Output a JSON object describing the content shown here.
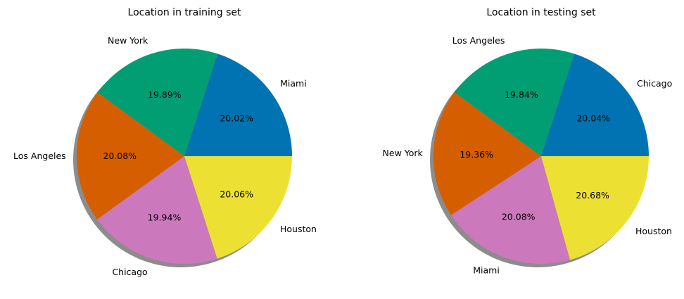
{
  "chart_data": [
    {
      "type": "pie",
      "title": "Location in training set",
      "slices": [
        {
          "label": "Miami",
          "value": 20.02,
          "pct_text": "20.02%",
          "color": "#0173b2"
        },
        {
          "label": "New York",
          "value": 19.89,
          "pct_text": "19.89%",
          "color": "#029e73"
        },
        {
          "label": "Los Angeles",
          "value": 20.08,
          "pct_text": "20.08%",
          "color": "#d55e00"
        },
        {
          "label": "Chicago",
          "value": 19.94,
          "pct_text": "19.94%",
          "color": "#cc78bc"
        },
        {
          "label": "Houston",
          "value": 20.06,
          "pct_text": "20.06%",
          "color": "#ece133"
        }
      ],
      "start_angle_deg": 0,
      "direction": "counterclockwise",
      "shadow": true
    },
    {
      "type": "pie",
      "title": "Location in testing set",
      "slices": [
        {
          "label": "Chicago",
          "value": 20.04,
          "pct_text": "20.04%",
          "color": "#0173b2"
        },
        {
          "label": "Los Angeles",
          "value": 19.84,
          "pct_text": "19.84%",
          "color": "#029e73"
        },
        {
          "label": "New York",
          "value": 19.36,
          "pct_text": "19.36%",
          "color": "#d55e00"
        },
        {
          "label": "Miami",
          "value": 20.08,
          "pct_text": "20.08%",
          "color": "#cc78bc"
        },
        {
          "label": "Houston",
          "value": 20.68,
          "pct_text": "20.68%",
          "color": "#ece133"
        }
      ],
      "start_angle_deg": 0,
      "direction": "counterclockwise",
      "shadow": true
    }
  ]
}
